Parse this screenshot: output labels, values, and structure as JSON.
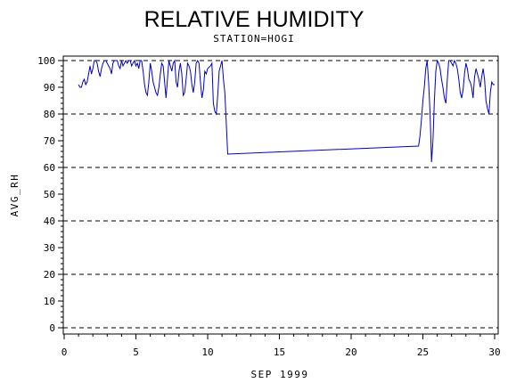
{
  "chart_data": {
    "type": "line",
    "title": "RELATIVE HUMIDITY",
    "subtitle": "STATION=HOGI",
    "xlabel": "SEP 1999",
    "ylabel": "AVG_RH",
    "xlim": [
      0,
      30
    ],
    "ylim": [
      0,
      100
    ],
    "x_ticks": [
      0,
      5,
      10,
      15,
      20,
      25,
      30
    ],
    "y_ticks": [
      0,
      10,
      20,
      30,
      40,
      50,
      60,
      70,
      80,
      90,
      100
    ],
    "grid_y": [
      0,
      20,
      40,
      60,
      80,
      100
    ],
    "colors": {
      "line": "#0000cc",
      "axis": "#000000",
      "grid": "#000000"
    },
    "series": [
      {
        "x": [
          1.0,
          1.1,
          1.2,
          1.3,
          1.4,
          1.5,
          1.6,
          1.7,
          1.8,
          1.9,
          2.0,
          2.1,
          2.2,
          2.3,
          2.4,
          2.5,
          2.6,
          2.7,
          2.8,
          2.9,
          3.0,
          3.1,
          3.2,
          3.3,
          3.4,
          3.5,
          3.6,
          3.7,
          3.8,
          3.9,
          4.0,
          4.1,
          4.2,
          4.3,
          4.4,
          4.5,
          4.6,
          4.7,
          4.8,
          4.9,
          5.0,
          5.1,
          5.2,
          5.3,
          5.4,
          5.5,
          5.6,
          5.7,
          5.8,
          5.9,
          6.0,
          6.1,
          6.2,
          6.3,
          6.4,
          6.5,
          6.6,
          6.7,
          6.8,
          6.9,
          7.0,
          7.1,
          7.2,
          7.3,
          7.4,
          7.5,
          7.6,
          7.7,
          7.8,
          7.9,
          8.0,
          8.1,
          8.2,
          8.3,
          8.4,
          8.5,
          8.6,
          8.7,
          8.8,
          8.9,
          9.0,
          9.1,
          9.2,
          9.3,
          9.4,
          9.5,
          9.6,
          9.7,
          9.8,
          9.9,
          10.0,
          10.2,
          10.3,
          10.4,
          10.5,
          10.6,
          10.7,
          10.8,
          10.9,
          11.0,
          11.1,
          11.2,
          11.4,
          24.7,
          24.8,
          24.9,
          25.0,
          25.1,
          25.2,
          25.3,
          25.4,
          25.5,
          25.6,
          25.7,
          25.8,
          25.9,
          26.0,
          26.1,
          26.2,
          26.3,
          26.4,
          26.5,
          26.6,
          26.7,
          26.8,
          26.9,
          27.0,
          27.1,
          27.2,
          27.3,
          27.4,
          27.5,
          27.6,
          27.7,
          27.8,
          27.9,
          28.0,
          28.1,
          28.2,
          28.3,
          28.4,
          28.5,
          28.6,
          28.7,
          28.8,
          28.9,
          29.0,
          29.1,
          29.2,
          29.3,
          29.4,
          29.5,
          29.6,
          29.7,
          29.8,
          29.9,
          30.0
        ],
        "y": [
          91,
          90,
          90,
          92,
          93,
          91,
          92,
          95,
          98,
          95,
          97,
          100,
          100,
          99,
          96,
          94,
          97,
          99,
          100,
          100,
          99,
          98,
          97,
          95,
          99,
          100,
          100,
          100,
          98,
          97,
          100,
          98,
          99,
          100,
          99,
          100,
          100,
          98,
          99,
          100,
          98,
          99,
          97,
          100,
          100,
          96,
          91,
          88,
          87,
          92,
          99,
          96,
          92,
          90,
          88,
          87,
          90,
          95,
          99,
          98,
          92,
          86,
          93,
          100,
          98,
          96,
          99,
          100,
          92,
          90,
          96,
          99,
          95,
          87,
          88,
          93,
          99,
          98,
          96,
          91,
          88,
          92,
          99,
          100,
          99,
          92,
          86,
          89,
          96,
          95,
          97,
          98,
          99,
          84,
          81,
          80,
          87,
          96,
          98,
          100,
          93,
          88,
          65,
          68,
          72,
          78,
          85,
          90,
          97,
          100,
          92,
          80,
          62,
          70,
          85,
          96,
          100,
          99,
          97,
          93,
          90,
          86,
          84,
          93,
          100,
          100,
          99,
          98,
          100,
          99,
          97,
          93,
          88,
          86,
          89,
          95,
          99,
          97,
          93,
          92,
          90,
          86,
          94,
          97,
          95,
          93,
          90,
          94,
          97,
          93,
          85,
          82,
          80,
          88,
          92,
          91,
          91
        ]
      }
    ]
  }
}
